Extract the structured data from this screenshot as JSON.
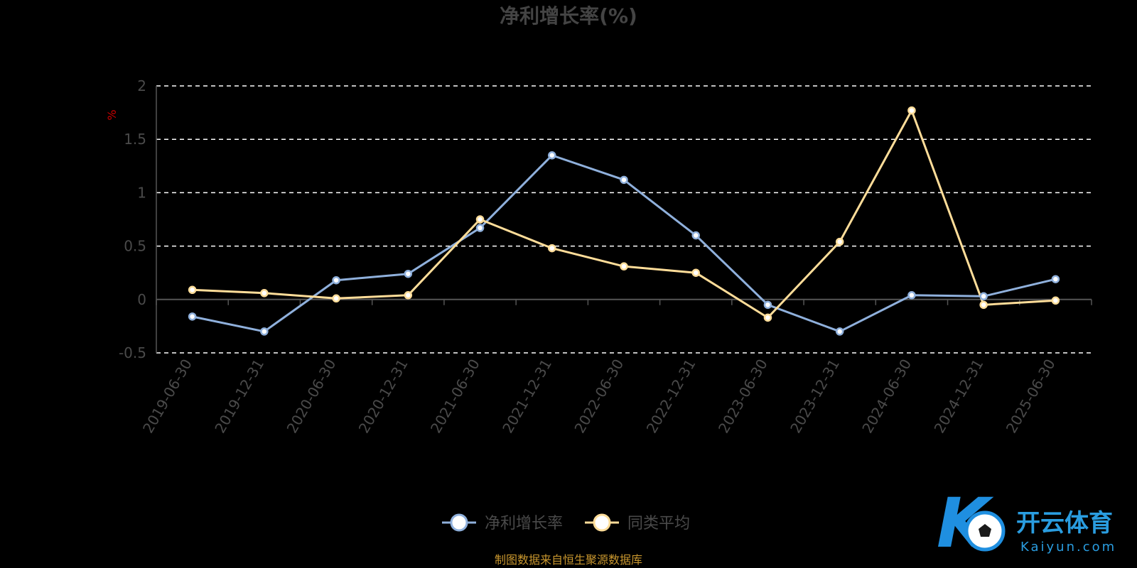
{
  "chart_data": {
    "type": "line",
    "title": "净利增长率(%)",
    "ylabel": "%",
    "xlabel": "",
    "ylim": [
      -0.5,
      2
    ],
    "yticks": [
      "2",
      "1.5",
      "1",
      "0.5",
      "0",
      "-0.5"
    ],
    "ytick_values": [
      2,
      1.5,
      1,
      0.5,
      0,
      -0.5
    ],
    "grid": true,
    "legend_position": "bottom-center",
    "categories": [
      "2019-06-30",
      "2019-12-31",
      "2020-06-30",
      "2020-12-31",
      "2021-06-30",
      "2021-12-31",
      "2022-06-30",
      "2022-12-31",
      "2023-06-30",
      "2023-12-31",
      "2024-06-30",
      "2024-12-31",
      "2025-06-30"
    ],
    "series": [
      {
        "name": "净利增长率",
        "color": "#8fb0dc",
        "values": [
          -0.16,
          -0.3,
          0.18,
          0.24,
          0.67,
          1.35,
          1.12,
          0.6,
          -0.05,
          -0.3,
          0.04,
          0.03,
          0.19
        ]
      },
      {
        "name": "同类平均",
        "color": "#ffdd99",
        "values": [
          0.09,
          0.06,
          0.01,
          0.04,
          0.75,
          0.48,
          0.31,
          0.25,
          -0.17,
          0.54,
          1.77,
          -0.05,
          -0.01
        ]
      }
    ]
  },
  "footer": {
    "source_note": "制图数据来自恒生聚源数据库"
  },
  "watermark": {
    "name": "开云体育",
    "sub": "Kaiyun.com"
  },
  "colors": {
    "background": "#000000",
    "grid": "#ffffff",
    "axis": "#555555",
    "source_note": "#c8962e",
    "watermark": "#2a9de0"
  }
}
